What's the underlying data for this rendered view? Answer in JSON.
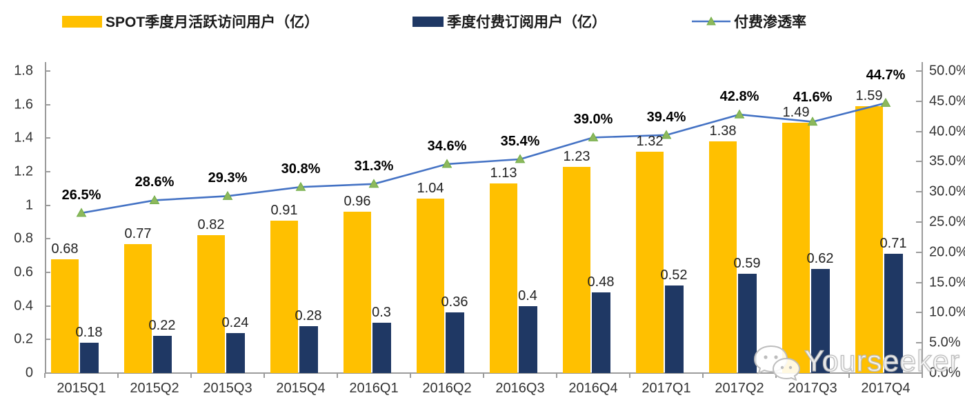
{
  "chart_data": {
    "type": "bar",
    "combo": "grouped-bars-with-line",
    "title": "",
    "categories": [
      "2015Q1",
      "2015Q2",
      "2015Q3",
      "2015Q4",
      "2016Q1",
      "2016Q2",
      "2016Q3",
      "2016Q4",
      "2017Q1",
      "2017Q2",
      "2017Q3",
      "2017Q4"
    ],
    "series": [
      {
        "name": "SPOT季度月活跃访问用户（亿）",
        "type": "bar",
        "axis": "left",
        "color": "#FFC000",
        "values": [
          0.68,
          0.77,
          0.82,
          0.91,
          0.96,
          1.04,
          1.13,
          1.23,
          1.32,
          1.38,
          1.49,
          1.59
        ],
        "labels": [
          "0.68",
          "0.77",
          "0.82",
          "0.91",
          "0.96",
          "1.04",
          "1.13",
          "1.23",
          "1.32",
          "1.38",
          "1.49",
          "1.59"
        ]
      },
      {
        "name": "季度付费订阅用户（亿）",
        "type": "bar",
        "axis": "left",
        "color": "#1F3864",
        "values": [
          0.18,
          0.22,
          0.24,
          0.28,
          0.3,
          0.36,
          0.4,
          0.48,
          0.52,
          0.59,
          0.62,
          0.71
        ],
        "labels": [
          "0.18",
          "0.22",
          "0.24",
          "0.28",
          "0.3",
          "0.36",
          "0.4",
          "0.48",
          "0.52",
          "0.59",
          "0.62",
          "0.71"
        ]
      },
      {
        "name": "付费渗透率",
        "type": "line",
        "axis": "right",
        "color": "#4472C4",
        "marker": "triangle",
        "marker_fill": "#8DB85C",
        "marker_stroke": "#70AD47",
        "values": [
          26.5,
          28.6,
          29.3,
          30.8,
          31.3,
          34.6,
          35.4,
          39.0,
          39.4,
          42.8,
          41.6,
          44.7
        ],
        "labels": [
          "26.5%",
          "28.6%",
          "29.3%",
          "30.8%",
          "31.3%",
          "34.6%",
          "35.4%",
          "39.0%",
          "39.4%",
          "42.8%",
          "41.6%",
          "44.7%"
        ]
      }
    ],
    "left_axis": {
      "min": 0,
      "max": 1.8,
      "step": 0.2,
      "tick_labels": [
        "0",
        "0.2",
        "0.4",
        "0.6",
        "0.8",
        "1",
        "1.2",
        "1.4",
        "1.6",
        "1.8"
      ]
    },
    "right_axis": {
      "min": 0,
      "max": 50,
      "step": 5,
      "tick_labels": [
        "0.0%",
        "5.0%",
        "10.0%",
        "15.0%",
        "20.0%",
        "25.0%",
        "30.0%",
        "35.0%",
        "40.0%",
        "45.0%",
        "50.0%"
      ]
    },
    "grid": false,
    "legend_position": "top",
    "axis_color": "#9B9B9B"
  },
  "watermark": {
    "text": "Yourseeker",
    "icon": "wechat-icon"
  }
}
